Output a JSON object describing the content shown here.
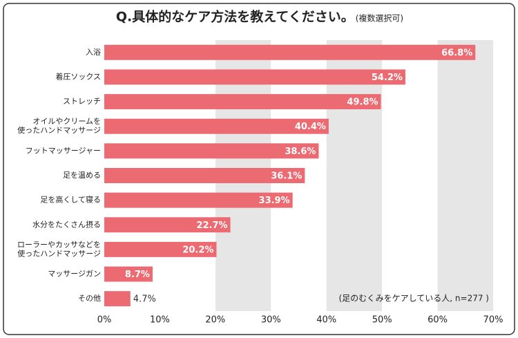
{
  "chart_data": {
    "type": "hbar",
    "title": "Q.具体的なケア方法を教えてください。",
    "subtitle": "(複数選択可)",
    "note": "(足のむくみをケアしている人, n=277 )",
    "categories": [
      "入浴",
      "着圧ソックス",
      "ストレッチ",
      "オイルやクリームを\n使ったハンドマッサージ",
      "フットマッサージャー",
      "足を温める",
      "足を高くして寝る",
      "水分をたくさん摂る",
      "ローラーやカッサなどを\n使ったハンドマッサージ",
      "マッサージガン",
      "その他"
    ],
    "values": [
      66.8,
      54.2,
      49.8,
      40.4,
      38.6,
      36.1,
      33.9,
      22.7,
      20.2,
      8.7,
      4.7
    ],
    "value_labels": [
      "66.8%",
      "54.2%",
      "49.8%",
      "40.4%",
      "38.6%",
      "36.1%",
      "33.9%",
      "22.7%",
      "20.2%",
      "8.7%",
      "4.7%"
    ],
    "color": "#ec6b73",
    "xlim": [
      0,
      70
    ],
    "xticks": [
      {
        "value": 0,
        "label": "0%"
      },
      {
        "value": 10,
        "label": "10%"
      },
      {
        "value": 20,
        "label": "20%"
      },
      {
        "value": 30,
        "label": "30%"
      },
      {
        "value": 40,
        "label": "40%"
      },
      {
        "value": 50,
        "label": "50%"
      },
      {
        "value": 60,
        "label": "60%"
      },
      {
        "value": 70,
        "label": "70%"
      }
    ]
  }
}
